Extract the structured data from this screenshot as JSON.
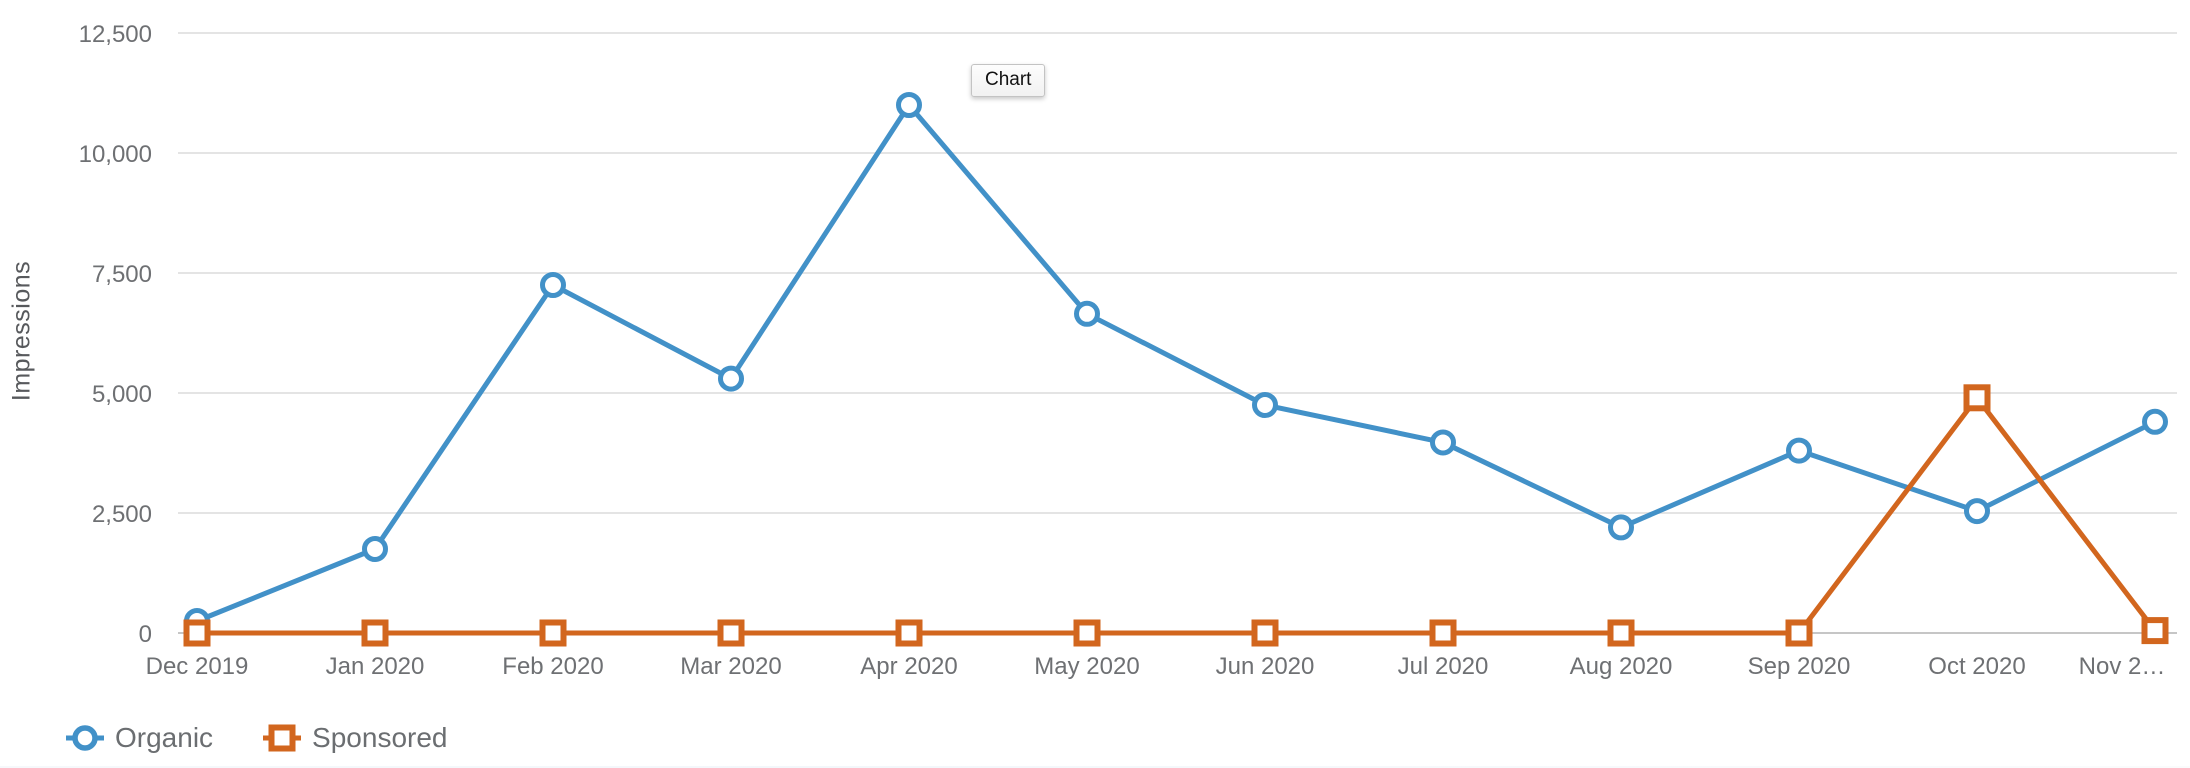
{
  "tooltip": {
    "label": "Chart"
  },
  "legend": [
    {
      "name": "Organic",
      "color": "#4291c8",
      "marker": "circle"
    },
    {
      "name": "Sponsored",
      "color": "#d2661e",
      "marker": "square"
    }
  ],
  "colors": {
    "organic": "#4291c8",
    "sponsored": "#d2661e",
    "gridline": "#e4e4e4",
    "zero_axis": "#c6c6c6",
    "tick_text": "#6e7073"
  },
  "chart_data": {
    "type": "line",
    "title": "",
    "xlabel": "",
    "ylabel": "Impressions",
    "categories": [
      "Dec 2019",
      "Jan 2020",
      "Feb 2020",
      "Mar 2020",
      "Apr 2020",
      "May 2020",
      "Jun 2020",
      "Jul 2020",
      "Aug 2020",
      "Sep 2020",
      "Oct 2020",
      "Nov 2020"
    ],
    "x_tick_labels": [
      "Dec 2019",
      "Jan 2020",
      "Feb 2020",
      "Mar 2020",
      "Apr 2020",
      "May 2020",
      "Jun 2020",
      "Jul 2020",
      "Aug 2020",
      "Sep 2020",
      "Oct 2020",
      "Nov 2…"
    ],
    "y_ticks": [
      0,
      2500,
      5000,
      7500,
      10000,
      12500
    ],
    "ylim": [
      0,
      12500
    ],
    "grid": true,
    "legend_position": "bottom-left",
    "series": [
      {
        "name": "Organic",
        "marker": "circle",
        "values": [
          250,
          1750,
          7250,
          5300,
          11000,
          6650,
          4750,
          3970,
          2200,
          3800,
          2540,
          4400
        ]
      },
      {
        "name": "Sponsored",
        "marker": "square",
        "values": [
          0,
          0,
          0,
          0,
          0,
          0,
          0,
          0,
          0,
          0,
          4900,
          50
        ]
      }
    ]
  }
}
